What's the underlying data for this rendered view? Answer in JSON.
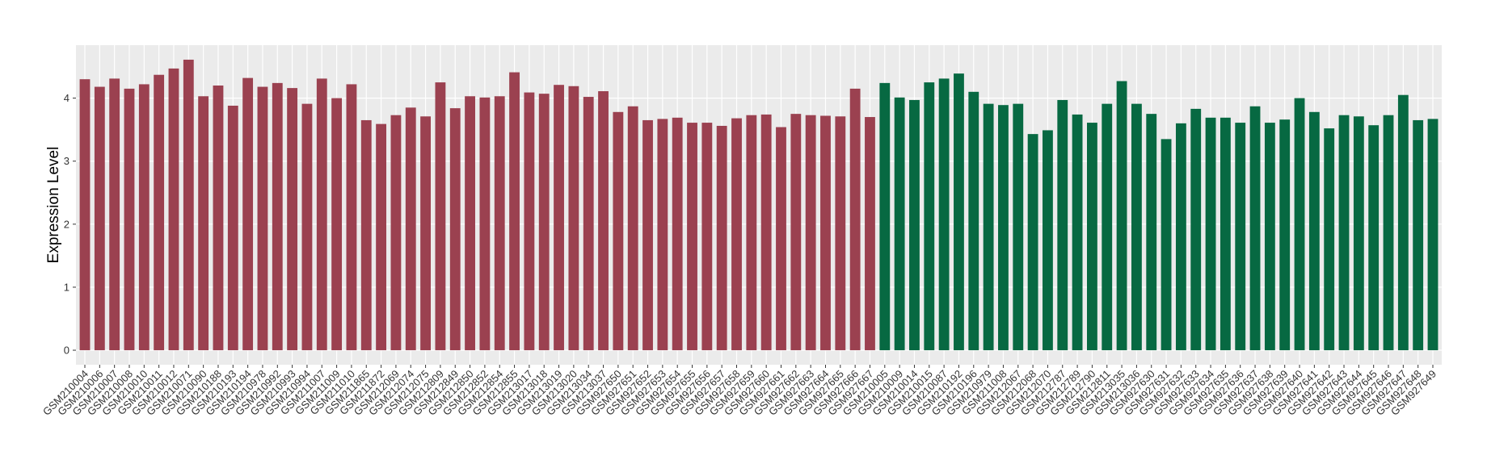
{
  "chart_data": {
    "type": "bar",
    "y_label": "Expression Level",
    "categories": [
      "GSM210004",
      "GSM210006",
      "GSM210007",
      "GSM210008",
      "GSM210010",
      "GSM210011",
      "GSM210012",
      "GSM210071",
      "GSM210090",
      "GSM210188",
      "GSM210193",
      "GSM210194",
      "GSM210978",
      "GSM210992",
      "GSM210993",
      "GSM210994",
      "GSM211007",
      "GSM211009",
      "GSM211010",
      "GSM211865",
      "GSM211872",
      "GSM212069",
      "GSM212074",
      "GSM212075",
      "GSM212809",
      "GSM212849",
      "GSM212850",
      "GSM212852",
      "GSM212854",
      "GSM212855",
      "GSM213017",
      "GSM213018",
      "GSM213019",
      "GSM213020",
      "GSM213034",
      "GSM213037",
      "GSM927650",
      "GSM927651",
      "GSM927652",
      "GSM927653",
      "GSM927654",
      "GSM927655",
      "GSM927656",
      "GSM927657",
      "GSM927658",
      "GSM927659",
      "GSM927660",
      "GSM927661",
      "GSM927662",
      "GSM927663",
      "GSM927664",
      "GSM927665",
      "GSM927666",
      "GSM927667",
      "GSM210005",
      "GSM210009",
      "GSM210014",
      "GSM210015",
      "GSM210087",
      "GSM210192",
      "GSM210196",
      "GSM210979",
      "GSM211008",
      "GSM212067",
      "GSM212068",
      "GSM212070",
      "GSM212787",
      "GSM212789",
      "GSM212790",
      "GSM212811",
      "GSM213035",
      "GSM213036",
      "GSM927630",
      "GSM927631",
      "GSM927632",
      "GSM927633",
      "GSM927634",
      "GSM927635",
      "GSM927636",
      "GSM927637",
      "GSM927638",
      "GSM927639",
      "GSM927640",
      "GSM927641",
      "GSM927642",
      "GSM927643",
      "GSM927644",
      "GSM927645",
      "GSM927646",
      "GSM927647",
      "GSM927648",
      "GSM927649"
    ],
    "series": [
      {
        "color": "#9b4150",
        "values": [
          4.3,
          4.18,
          4.31,
          4.15,
          4.22,
          4.37,
          4.47,
          4.61,
          4.03,
          4.2,
          3.88,
          4.32,
          4.18,
          4.24,
          4.16,
          3.91,
          4.31,
          4.0,
          4.22,
          3.65,
          3.59,
          3.73,
          3.85,
          3.71,
          4.25,
          3.84,
          4.03,
          4.01,
          4.03,
          4.41,
          4.09,
          4.07,
          4.21,
          4.19,
          4.02,
          4.11,
          3.78,
          3.87,
          3.65,
          3.67,
          3.69,
          3.61,
          3.61,
          3.56,
          3.68,
          3.73,
          3.74,
          3.54,
          3.75,
          3.73,
          3.72,
          3.71,
          4.15,
          3.7,
          null,
          null,
          null,
          null,
          null,
          null,
          null,
          null,
          null,
          null,
          null,
          null,
          null,
          null,
          null,
          null,
          null,
          null,
          null,
          null,
          null,
          null,
          null,
          null,
          null,
          null,
          null,
          null,
          null,
          null,
          null,
          null,
          null,
          null,
          null,
          null,
          null,
          null
        ]
      },
      {
        "color": "#076942",
        "values": [
          null,
          null,
          null,
          null,
          null,
          null,
          null,
          null,
          null,
          null,
          null,
          null,
          null,
          null,
          null,
          null,
          null,
          null,
          null,
          null,
          null,
          null,
          null,
          null,
          null,
          null,
          null,
          null,
          null,
          null,
          null,
          null,
          null,
          null,
          null,
          null,
          null,
          null,
          null,
          null,
          null,
          null,
          null,
          null,
          null,
          null,
          null,
          null,
          null,
          null,
          null,
          null,
          null,
          null,
          4.24,
          4.01,
          3.97,
          4.25,
          4.31,
          4.39,
          4.1,
          3.91,
          3.89,
          3.91,
          3.43,
          3.49,
          3.97,
          3.74,
          3.61,
          3.91,
          4.27,
          3.91,
          3.75,
          3.35,
          3.6,
          3.83,
          3.69,
          3.69,
          3.61,
          3.87,
          3.61,
          3.66,
          4.0,
          3.78,
          3.52,
          3.73,
          3.71,
          3.57,
          3.73,
          4.05,
          3.65,
          3.67
        ]
      }
    ],
    "ylim": [
      -0.23,
      4.84
    ],
    "yticks": [
      0,
      1,
      2,
      3,
      4
    ],
    "grid": true
  }
}
